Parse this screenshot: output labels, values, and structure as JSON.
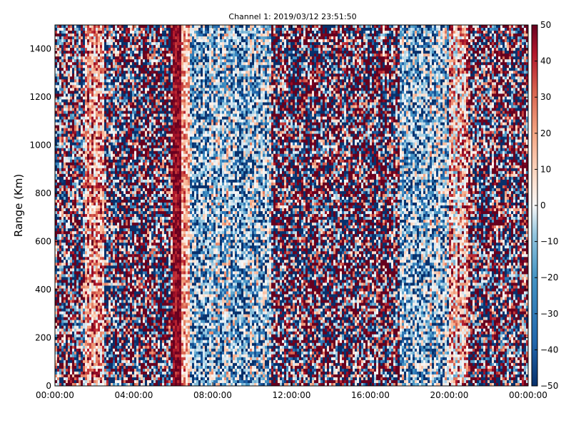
{
  "chart_data": {
    "type": "heatmap",
    "title": "Channel 1: 2019/03/12 23:51:50",
    "ylabel": "Range (Km)",
    "xlabel": "",
    "x_ticks": [
      "00:00:00",
      "04:00:00",
      "08:00:00",
      "12:00:00",
      "16:00:00",
      "20:00:00",
      "00:00:00"
    ],
    "x_range_hours": [
      0,
      24
    ],
    "y_ticks": [
      0,
      200,
      400,
      600,
      800,
      1000,
      1200,
      1400
    ],
    "ylim": [
      0,
      1500
    ],
    "colorbar": {
      "ticks": [
        50,
        40,
        30,
        20,
        10,
        0,
        -10,
        -20,
        -30,
        -40,
        -50
      ],
      "range": [
        -50,
        50
      ],
      "colormap": "RdBu_r",
      "low_color": "#08306b",
      "mid_color": "#f7f7f7",
      "high_color": "#67001f"
    },
    "grid": false,
    "bands_by_hour": [
      {
        "from": 0.0,
        "to": 1.5,
        "mean": 3,
        "noise": 45
      },
      {
        "from": 1.5,
        "to": 2.5,
        "mean": 20,
        "noise": 30
      },
      {
        "from": 2.5,
        "to": 3.0,
        "mean": 0,
        "noise": 50
      },
      {
        "from": 3.0,
        "to": 6.0,
        "mean": 5,
        "noise": 60
      },
      {
        "from": 6.0,
        "to": 6.4,
        "mean": 45,
        "noise": 10
      },
      {
        "from": 6.4,
        "to": 6.8,
        "mean": 20,
        "noise": 20
      },
      {
        "from": 6.8,
        "to": 11.0,
        "mean": -22,
        "noise": 40
      },
      {
        "from": 11.0,
        "to": 17.5,
        "mean": 5,
        "noise": 60
      },
      {
        "from": 17.5,
        "to": 20.0,
        "mean": -20,
        "noise": 40
      },
      {
        "from": 20.0,
        "to": 21.0,
        "mean": 15,
        "noise": 35
      },
      {
        "from": 21.0,
        "to": 24.0,
        "mean": 5,
        "noise": 55
      }
    ]
  }
}
